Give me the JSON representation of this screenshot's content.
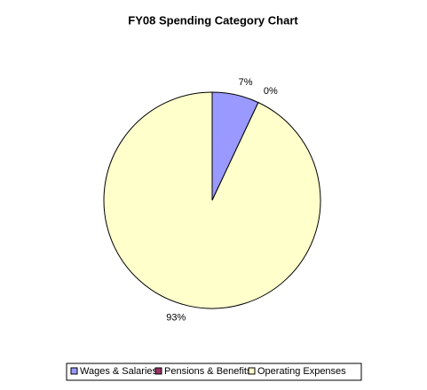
{
  "chart_data": {
    "type": "pie",
    "title": "FY08 Spending Category Chart",
    "categories": [
      "Wages & Salaries",
      "Pensions & Benefits",
      "Operating Expenses"
    ],
    "values": [
      7,
      0,
      93
    ],
    "value_labels": [
      "7%",
      "0%",
      "93%"
    ],
    "colors": [
      "#9999ff",
      "#993366",
      "#ffffcc"
    ]
  }
}
